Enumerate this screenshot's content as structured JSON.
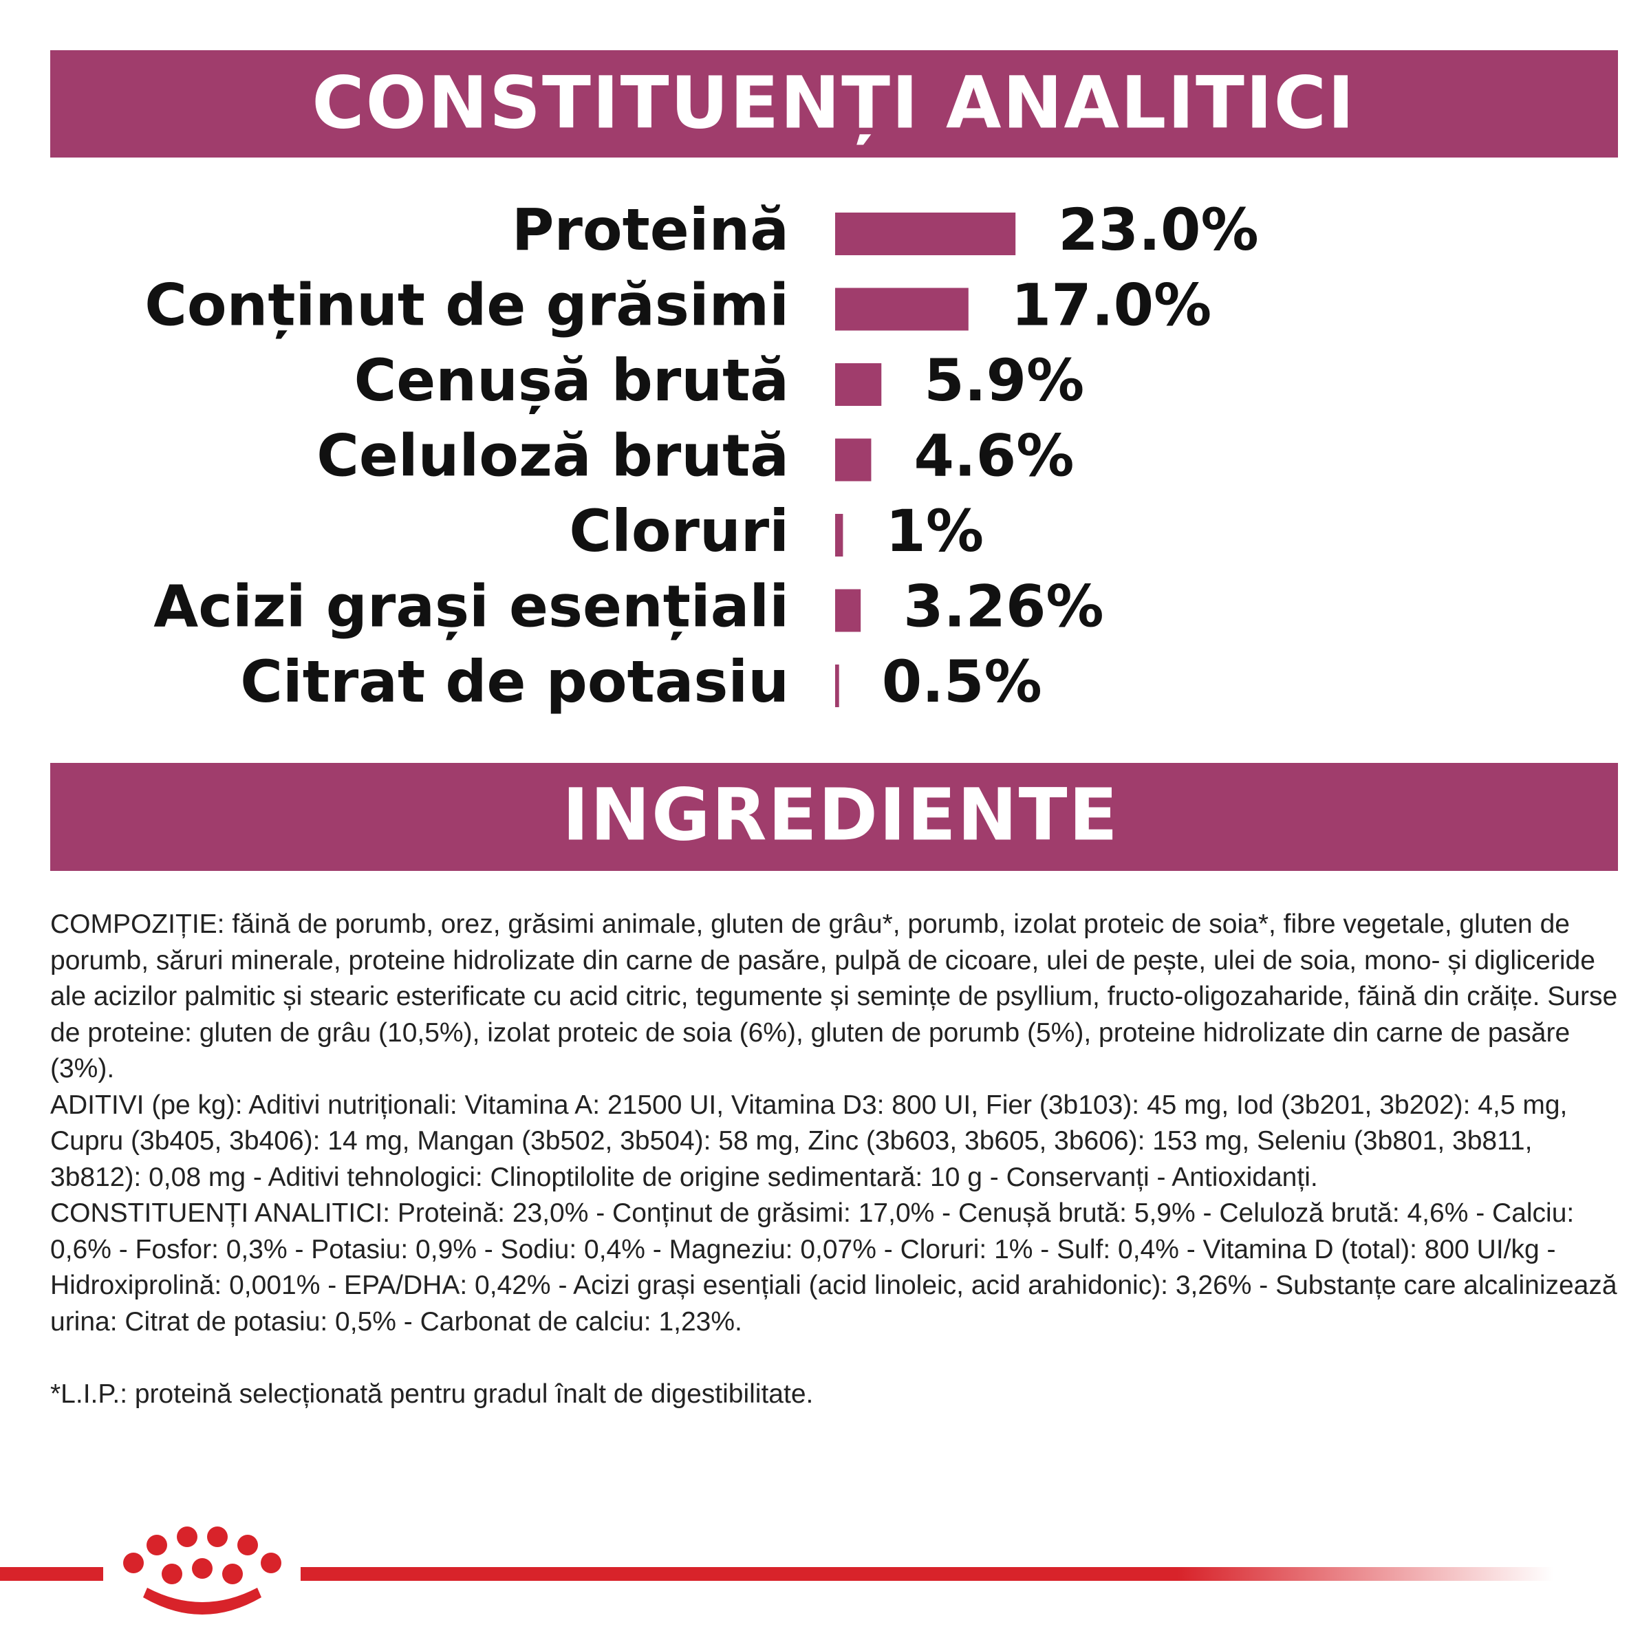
{
  "chart_data": {
    "type": "bar",
    "orientation": "horizontal",
    "title": "CONSTITUENȚI ANALITICI",
    "categories": [
      "Proteină",
      "Conținut de grăsimi",
      "Cenușă brută",
      "Celuloză brută",
      "Cloruri",
      "Acizi grași esențiali",
      "Citrat de potasiu"
    ],
    "values": [
      23.0,
      17.0,
      5.9,
      4.6,
      1,
      3.26,
      0.5
    ],
    "value_labels": [
      "23.0%",
      "17.0%",
      "5.9%",
      "4.6%",
      "1%",
      "3.26%",
      "0.5%"
    ],
    "color": "#a03d6c"
  },
  "ingredients": {
    "title": "INGREDIENTE",
    "paragraphs": [
      "COMPOZIȚIE: făină de porumb, orez, grăsimi animale, gluten de grâu*, porumb, izolat proteic de soia*, fibre vegetale, gluten de porumb, săruri minerale, proteine hidrolizate din carne de pasăre, pulpă de cicoare, ulei de pește, ulei de soia, mono- și digliceride ale acizilor palmitic și stearic esterificate cu acid citric, tegumente și semințe de psyllium, fructo-oligozaharide, făină din crăițe. Surse de proteine: gluten de grâu (10,5%), izolat proteic de soia (6%), gluten de porumb (5%), proteine hidrolizate din carne de pasăre (3%).",
      "ADITIVI (pe kg): Aditivi nutriționali: Vitamina A: 21500 UI, Vitamina D3: 800 UI, Fier (3b103): 45 mg, Iod (3b201, 3b202): 4,5 mg, Cupru (3b405, 3b406): 14 mg, Mangan (3b502, 3b504): 58 mg, Zinc (3b603, 3b605, 3b606): 153 mg, Seleniu (3b801, 3b811, 3b812): 0,08 mg - Aditivi tehnologici: Clinoptilolite de origine sedimentară: 10 g - Conservanți - Antioxidanți.",
      "CONSTITUENȚI ANALITICI: Proteină: 23,0% - Conținut de grăsimi: 17,0% - Cenușă brută: 5,9% - Celuloză brută: 4,6% - Calciu: 0,6% - Fosfor: 0,3% - Potasiu: 0,9% - Sodiu: 0,4% - Magneziu: 0,07% - Cloruri: 1% - Sulf: 0,4% - Vitamina D (total): 800 UI/kg - Hidroxiprolină: 0,001% - EPA/DHA: 0,42% - Acizi grași esențiali (acid linoleic, acid arahidonic): 3,26% - Substanțe care alcalinizează urina: Citrat de potasiu: 0,5% - Carbonat de calciu: 1,23%."
    ],
    "footnote": "*L.I.P.: proteină selecționată pentru gradul înalt de digestibilitate."
  }
}
